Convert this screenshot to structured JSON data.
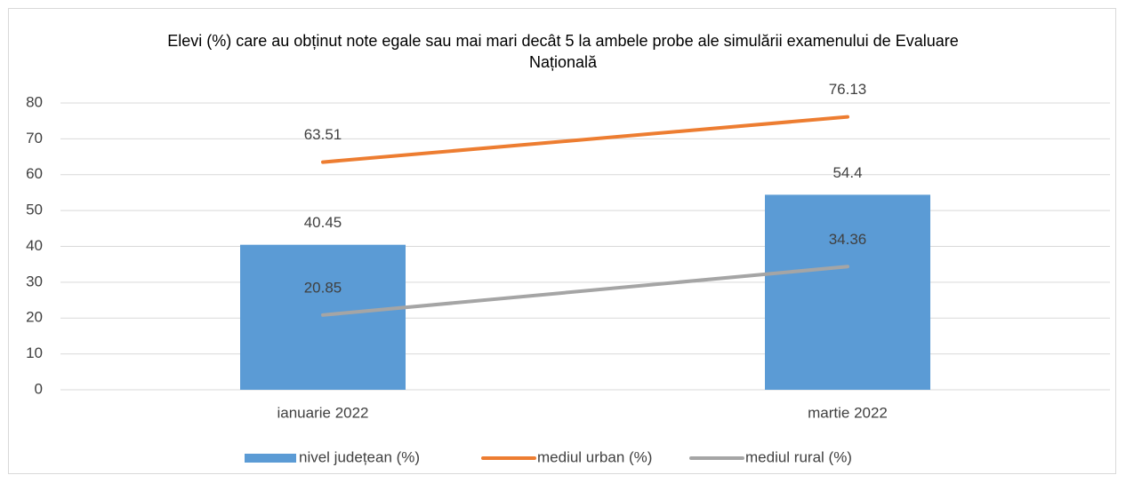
{
  "chart_data": {
    "type": "bar",
    "title": "Elevi (%) care au obținut note egale sau mai mari decât 5 la ambele probe ale simulării examenului de Evaluare Națională",
    "categories": [
      "ianuarie 2022",
      "martie 2022"
    ],
    "series": [
      {
        "name": "nivel județean (%)",
        "type": "bar",
        "color": "#5b9bd5",
        "values": [
          40.45,
          54.4
        ]
      },
      {
        "name": "mediul urban (%)",
        "type": "line",
        "color": "#ed7d31",
        "values": [
          63.51,
          76.13
        ]
      },
      {
        "name": "mediul rural (%)",
        "type": "line",
        "color": "#a5a5a5",
        "values": [
          20.85,
          34.36
        ]
      }
    ],
    "ylim": [
      0,
      80
    ],
    "yticks": [
      0,
      10,
      20,
      30,
      40,
      50,
      60,
      70,
      80
    ],
    "grid": true,
    "legend": "bottom"
  }
}
